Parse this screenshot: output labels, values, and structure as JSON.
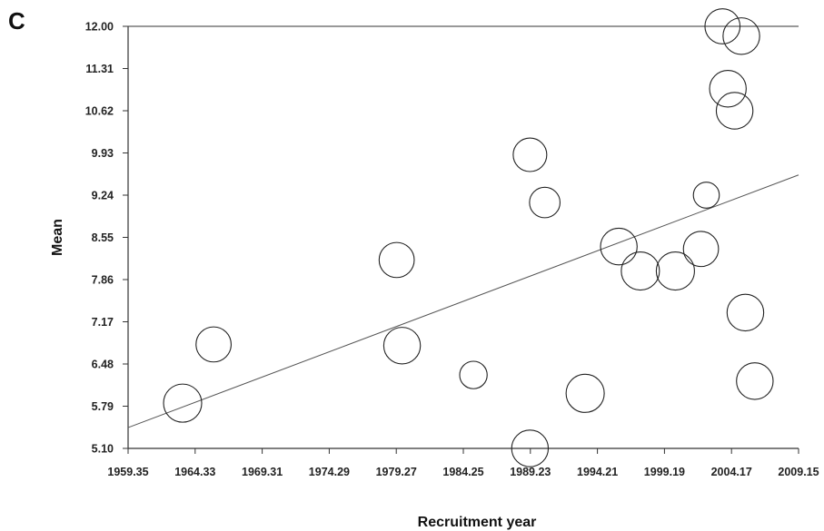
{
  "panel_label": "C",
  "chart_data": {
    "type": "scatter",
    "xlabel": "Recruitment year",
    "ylabel": "Mean",
    "xlim": [
      1959.35,
      2009.15
    ],
    "ylim": [
      5.1,
      12.0
    ],
    "x_ticks": [
      "1959.35",
      "1964.33",
      "1969.31",
      "1974.29",
      "1979.27",
      "1984.25",
      "1989.23",
      "1994.21",
      "1999.19",
      "2004.17",
      "2009.15"
    ],
    "y_ticks": [
      "5.10",
      "5.79",
      "6.48",
      "7.17",
      "7.86",
      "8.55",
      "9.24",
      "9.93",
      "10.62",
      "11.31",
      "12.00"
    ],
    "grid": false,
    "legend": "none",
    "trendline": {
      "x": [
        1959.35,
        2009.15
      ],
      "y": [
        5.44,
        9.57
      ]
    },
    "points": [
      {
        "x": 1963.4,
        "y": 5.84,
        "size": 1.0
      },
      {
        "x": 1965.7,
        "y": 6.8,
        "size": 0.92
      },
      {
        "x": 1979.3,
        "y": 8.18,
        "size": 0.92
      },
      {
        "x": 1979.7,
        "y": 6.78,
        "size": 0.96
      },
      {
        "x": 1985.0,
        "y": 6.3,
        "size": 0.72
      },
      {
        "x": 1989.2,
        "y": 9.9,
        "size": 0.88
      },
      {
        "x": 1989.2,
        "y": 5.1,
        "size": 0.96
      },
      {
        "x": 1990.3,
        "y": 9.12,
        "size": 0.8
      },
      {
        "x": 1993.3,
        "y": 6.0,
        "size": 1.0
      },
      {
        "x": 1995.8,
        "y": 8.4,
        "size": 0.96
      },
      {
        "x": 1997.4,
        "y": 8.0,
        "size": 1.0
      },
      {
        "x": 2000.0,
        "y": 8.0,
        "size": 1.0
      },
      {
        "x": 2001.9,
        "y": 8.36,
        "size": 0.92
      },
      {
        "x": 2002.3,
        "y": 9.24,
        "size": 0.68
      },
      {
        "x": 2003.5,
        "y": 12.0,
        "size": 0.92
      },
      {
        "x": 2003.9,
        "y": 10.98,
        "size": 0.96
      },
      {
        "x": 2004.4,
        "y": 10.62,
        "size": 0.96
      },
      {
        "x": 2004.9,
        "y": 11.84,
        "size": 0.96
      },
      {
        "x": 2005.2,
        "y": 7.32,
        "size": 0.96
      },
      {
        "x": 2005.9,
        "y": 6.2,
        "size": 0.96
      }
    ]
  }
}
